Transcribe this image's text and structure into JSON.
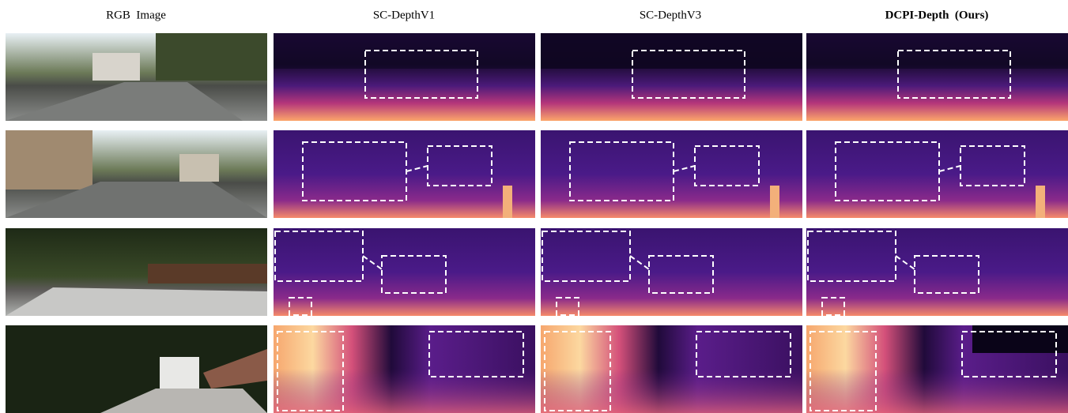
{
  "columns": [
    {
      "header": "RGB  Image"
    },
    {
      "header": "SC-DepthV1"
    },
    {
      "header": "SC-DepthV3"
    },
    {
      "header": "DCPI-Depth  (Ours)"
    }
  ]
}
